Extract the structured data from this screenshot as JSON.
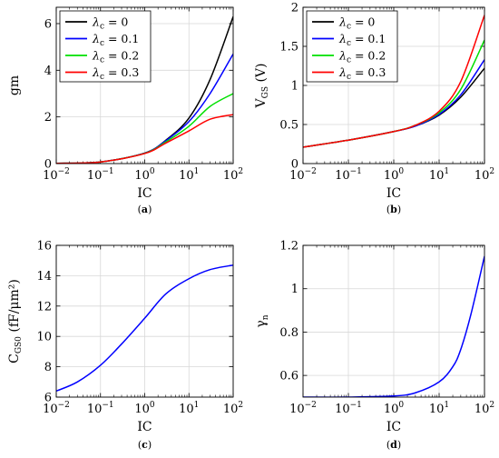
{
  "chart_data": [
    {
      "id": "a",
      "type": "line",
      "caption": "a",
      "xlabel": "IC",
      "ylabel": "gm",
      "xscale": "log",
      "xlim": [
        0.01,
        100
      ],
      "ylim": [
        0,
        6.7
      ],
      "yticks": [
        0,
        2,
        4,
        6
      ],
      "grid": true,
      "legend": "top-left",
      "series": [
        {
          "name": "λc = 0",
          "color": "#000000",
          "x": [
            0.01,
            0.1,
            1,
            3,
            10,
            30,
            100
          ],
          "y": [
            0.01,
            0.07,
            0.45,
            1.0,
            1.95,
            3.6,
            6.3
          ]
        },
        {
          "name": "λc = 0.1",
          "color": "#0000ff",
          "x": [
            0.01,
            0.1,
            1,
            3,
            10,
            30,
            100
          ],
          "y": [
            0.01,
            0.07,
            0.45,
            0.98,
            1.8,
            3.0,
            4.7
          ]
        },
        {
          "name": "λc = 0.2",
          "color": "#00e000",
          "x": [
            0.01,
            0.1,
            1,
            3,
            10,
            30,
            100
          ],
          "y": [
            0.01,
            0.07,
            0.44,
            0.93,
            1.6,
            2.45,
            3.0
          ]
        },
        {
          "name": "λc = 0.3",
          "color": "#ff0000",
          "x": [
            0.01,
            0.1,
            1,
            3,
            10,
            30,
            100
          ],
          "y": [
            0.01,
            0.07,
            0.43,
            0.88,
            1.4,
            1.9,
            2.1
          ]
        }
      ]
    },
    {
      "id": "b",
      "type": "line",
      "caption": "b",
      "xlabel": "IC",
      "ylabel": "V_GS (V)",
      "xscale": "log",
      "xlim": [
        0.01,
        100
      ],
      "ylim": [
        0,
        2
      ],
      "yticks": [
        0,
        0.5,
        1,
        1.5,
        2
      ],
      "grid": true,
      "legend": "top-left",
      "series": [
        {
          "name": "λc = 0",
          "color": "#000000",
          "x": [
            0.01,
            0.1,
            1,
            3,
            10,
            30,
            100
          ],
          "y": [
            0.21,
            0.3,
            0.41,
            0.48,
            0.62,
            0.85,
            1.22
          ]
        },
        {
          "name": "λc = 0.1",
          "color": "#0000ff",
          "x": [
            0.01,
            0.1,
            1,
            3,
            10,
            30,
            100
          ],
          "y": [
            0.21,
            0.3,
            0.41,
            0.48,
            0.63,
            0.88,
            1.33
          ]
        },
        {
          "name": "λc = 0.2",
          "color": "#00e000",
          "x": [
            0.01,
            0.1,
            1,
            3,
            10,
            30,
            100
          ],
          "y": [
            0.21,
            0.3,
            0.41,
            0.49,
            0.65,
            0.95,
            1.58
          ]
        },
        {
          "name": "λc = 0.3",
          "color": "#ff0000",
          "x": [
            0.01,
            0.1,
            1,
            3,
            10,
            30,
            100
          ],
          "y": [
            0.21,
            0.3,
            0.41,
            0.49,
            0.67,
            1.05,
            1.9
          ]
        }
      ]
    },
    {
      "id": "c",
      "type": "line",
      "caption": "c",
      "xlabel": "IC",
      "ylabel": "C_GS0 (fF/μm²)",
      "xscale": "log",
      "xlim": [
        0.01,
        100
      ],
      "ylim": [
        6,
        16
      ],
      "yticks": [
        6,
        8,
        10,
        12,
        14,
        16
      ],
      "grid": true,
      "series": [
        {
          "name": "",
          "color": "#0000ff",
          "x": [
            0.01,
            0.03,
            0.1,
            0.3,
            1,
            3,
            10,
            30,
            100
          ],
          "y": [
            6.4,
            7.0,
            8.1,
            9.5,
            11.2,
            12.8,
            13.8,
            14.4,
            14.7
          ]
        }
      ]
    },
    {
      "id": "d",
      "type": "line",
      "caption": "d",
      "xlabel": "IC",
      "ylabel": "γn",
      "xscale": "log",
      "xlim": [
        0.01,
        100
      ],
      "ylim": [
        0.5,
        1.2
      ],
      "yticks": [
        0.6,
        0.8,
        1,
        1.2
      ],
      "grid": true,
      "series": [
        {
          "name": "",
          "color": "#0000ff",
          "x": [
            0.01,
            0.1,
            1,
            3,
            10,
            20,
            30,
            50,
            100
          ],
          "y": [
            0.5,
            0.5,
            0.505,
            0.52,
            0.57,
            0.64,
            0.72,
            0.88,
            1.15
          ]
        }
      ]
    }
  ]
}
